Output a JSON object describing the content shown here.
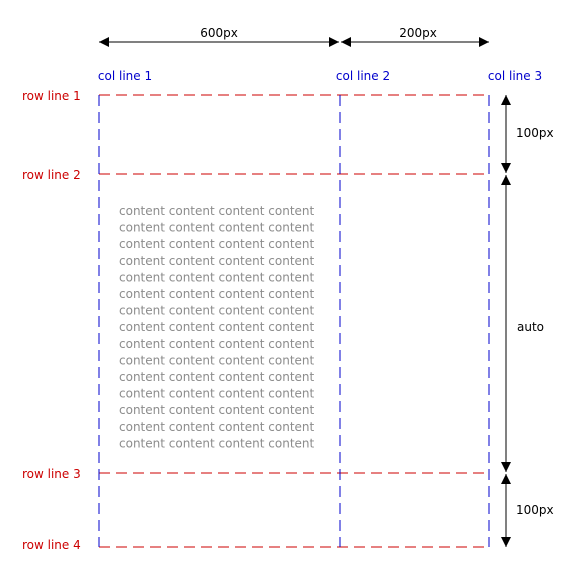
{
  "dimensions": {
    "columns": [
      "600px",
      "200px"
    ],
    "rows": [
      "100px",
      "auto",
      "100px"
    ]
  },
  "column_lines": [
    "col line 1",
    "col line 2",
    "col line 3"
  ],
  "row_lines": [
    "row line 1",
    "row line 2",
    "row line 3",
    "row line 4"
  ],
  "content": {
    "line_text": "content content content content",
    "line_count": 15
  },
  "colors": {
    "column_line": "#0000cc",
    "row_line": "#cc0000",
    "content_text": "#8c8c8c",
    "arrow": "#000000"
  }
}
